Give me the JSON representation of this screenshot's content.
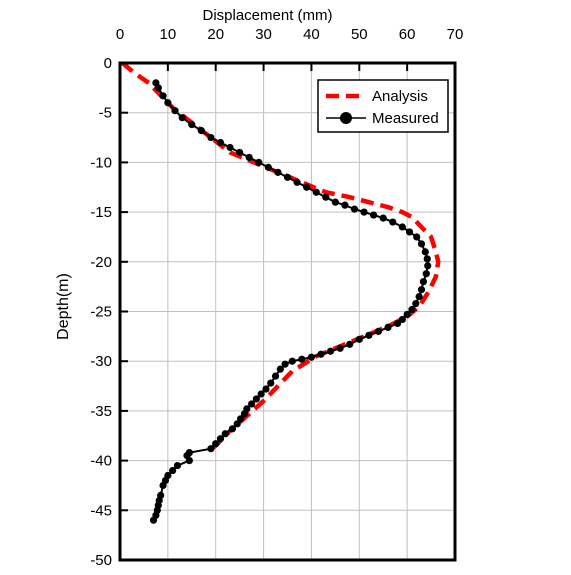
{
  "chart_data": {
    "type": "line",
    "title": "",
    "xlabel": "Displacement (mm)",
    "ylabel": "Depth(m)",
    "xlim": [
      0,
      70
    ],
    "ylim": [
      -50,
      0
    ],
    "x_axis_position": "top",
    "x_ticks": [
      0,
      10,
      20,
      30,
      40,
      50,
      60,
      70
    ],
    "y_ticks": [
      0,
      -5,
      -10,
      -15,
      -20,
      -25,
      -30,
      -35,
      -40,
      -45,
      -50
    ],
    "grid": true,
    "legend_position": "top-right",
    "series": [
      {
        "name": "Analysis",
        "style": "dashed",
        "color": "#ff0000",
        "points": [
          [
            0.5,
            0
          ],
          [
            3,
            -1
          ],
          [
            6,
            -2
          ],
          [
            8,
            -3
          ],
          [
            11,
            -4.5
          ],
          [
            15,
            -6
          ],
          [
            19,
            -7.5
          ],
          [
            23,
            -9
          ],
          [
            28,
            -10
          ],
          [
            33,
            -11
          ],
          [
            38,
            -12
          ],
          [
            43,
            -13
          ],
          [
            48,
            -13.5
          ],
          [
            52,
            -14
          ],
          [
            56,
            -14.5
          ],
          [
            59,
            -15
          ],
          [
            61,
            -15.5
          ],
          [
            63,
            -16.5
          ],
          [
            65,
            -17.5
          ],
          [
            66,
            -19
          ],
          [
            66.5,
            -20
          ],
          [
            66,
            -21.5
          ],
          [
            64.5,
            -23
          ],
          [
            62.5,
            -24.5
          ],
          [
            60,
            -25.5
          ],
          [
            56,
            -26.5
          ],
          [
            51,
            -27.5
          ],
          [
            46,
            -28.5
          ],
          [
            41,
            -29.5
          ],
          [
            36,
            -31
          ],
          [
            33,
            -32.5
          ],
          [
            30,
            -34
          ],
          [
            26.5,
            -35.5
          ],
          [
            23,
            -37
          ],
          [
            20,
            -38.5
          ],
          [
            18.5,
            -39
          ]
        ]
      },
      {
        "name": "Measured",
        "style": "line-marker",
        "color": "#000000",
        "points": [
          [
            7.5,
            -2
          ],
          [
            8,
            -2.5
          ],
          [
            9,
            -3.3
          ],
          [
            10,
            -4
          ],
          [
            11.5,
            -4.8
          ],
          [
            13,
            -5.5
          ],
          [
            15,
            -6.2
          ],
          [
            17,
            -6.8
          ],
          [
            19,
            -7.5
          ],
          [
            21,
            -8.0
          ],
          [
            23,
            -8.5
          ],
          [
            25,
            -9.0
          ],
          [
            27,
            -9.5
          ],
          [
            29,
            -10.0
          ],
          [
            31,
            -10.5
          ],
          [
            33,
            -11.0
          ],
          [
            35,
            -11.5
          ],
          [
            37,
            -12.0
          ],
          [
            39,
            -12.5
          ],
          [
            41,
            -13.0
          ],
          [
            43,
            -13.5
          ],
          [
            45,
            -14.0
          ],
          [
            47,
            -14.3
          ],
          [
            49,
            -14.7
          ],
          [
            51,
            -15.0
          ],
          [
            53,
            -15.3
          ],
          [
            55,
            -15.6
          ],
          [
            57,
            -16.0
          ],
          [
            59,
            -16.5
          ],
          [
            60.5,
            -17.0
          ],
          [
            62,
            -17.5
          ],
          [
            63,
            -18.2
          ],
          [
            63.8,
            -19.0
          ],
          [
            64.2,
            -19.7
          ],
          [
            64.3,
            -20.4
          ],
          [
            64,
            -21.2
          ],
          [
            63.4,
            -22.0
          ],
          [
            63,
            -22.8
          ],
          [
            62.5,
            -23.5
          ],
          [
            61.8,
            -24.2
          ],
          [
            61,
            -24.8
          ],
          [
            60,
            -25.3
          ],
          [
            59,
            -25.8
          ],
          [
            58,
            -26.2
          ],
          [
            56,
            -26.6
          ],
          [
            54,
            -27.0
          ],
          [
            52,
            -27.4
          ],
          [
            50,
            -27.8
          ],
          [
            48,
            -28.3
          ],
          [
            46,
            -28.7
          ],
          [
            44,
            -29.0
          ],
          [
            42,
            -29.3
          ],
          [
            40,
            -29.6
          ],
          [
            38,
            -29.8
          ],
          [
            36,
            -30.0
          ],
          [
            34.5,
            -30.3
          ],
          [
            33.5,
            -30.8
          ],
          [
            32.5,
            -31.5
          ],
          [
            31.5,
            -32.2
          ],
          [
            30.5,
            -32.8
          ],
          [
            29.5,
            -33.3
          ],
          [
            28.5,
            -33.8
          ],
          [
            27.5,
            -34.3
          ],
          [
            26.5,
            -34.8
          ],
          [
            26,
            -35.3
          ],
          [
            25.2,
            -35.8
          ],
          [
            24.5,
            -36.3
          ],
          [
            23.5,
            -36.8
          ],
          [
            22,
            -37.3
          ],
          [
            21,
            -37.8
          ],
          [
            20,
            -38.3
          ],
          [
            19,
            -38.8
          ],
          [
            14.5,
            -39.2
          ],
          [
            14,
            -39.5
          ],
          [
            14.5,
            -40
          ],
          [
            12,
            -40.5
          ],
          [
            11,
            -41
          ],
          [
            10,
            -41.5
          ],
          [
            9.5,
            -42
          ],
          [
            9,
            -42.5
          ],
          [
            8.5,
            -43.5
          ],
          [
            8.2,
            -44
          ],
          [
            8,
            -44.5
          ],
          [
            7.8,
            -45
          ],
          [
            7.5,
            -45.5
          ],
          [
            7,
            -46
          ]
        ]
      }
    ]
  }
}
